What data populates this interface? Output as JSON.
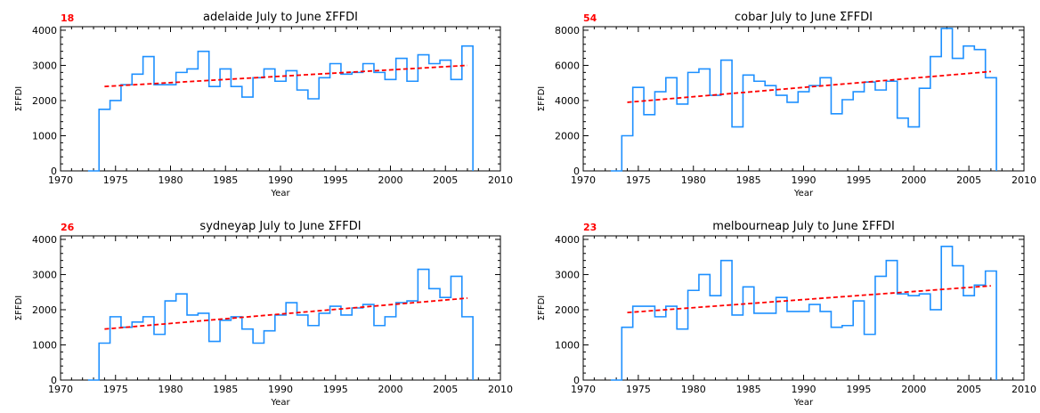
{
  "chart_data": [
    {
      "type": "line",
      "title": "adelaide July to June ΣFFDI",
      "badge": "18",
      "xlabel": "Year",
      "ylabel": "ΣFFDI",
      "xlim": [
        1970,
        2010
      ],
      "ylim": [
        0,
        4100
      ],
      "xticks": [
        1970,
        1975,
        1980,
        1985,
        1990,
        1995,
        2000,
        2005,
        2010
      ],
      "yticks": [
        0,
        1000,
        2000,
        3000,
        4000
      ],
      "series": [
        {
          "years": [
            1973,
            1974,
            1975,
            1976,
            1977,
            1978,
            1979,
            1980,
            1981,
            1982,
            1983,
            1984,
            1985,
            1986,
            1987,
            1988,
            1989,
            1990,
            1991,
            1992,
            1993,
            1994,
            1995,
            1996,
            1997,
            1998,
            1999,
            2000,
            2001,
            2002,
            2003,
            2004,
            2005,
            2006,
            2007
          ],
          "values": [
            0,
            1750,
            2000,
            2450,
            2750,
            3250,
            2450,
            2450,
            2800,
            2900,
            3400,
            2400,
            2900,
            2400,
            2100,
            2650,
            2900,
            2550,
            2850,
            2300,
            2050,
            2650,
            3050,
            2750,
            2800,
            3050,
            2800,
            2600,
            3200,
            2550,
            3300,
            3050,
            3150,
            2600,
            3550
          ],
          "color": "#1e90ff"
        }
      ],
      "trend": {
        "x": [
          1974,
          2007
        ],
        "y": [
          2400,
          3000
        ],
        "color": "#ff0000"
      }
    },
    {
      "type": "line",
      "title": "cobar July to June ΣFFDI",
      "badge": "54",
      "xlabel": "Year",
      "ylabel": "ΣFFDI",
      "xlim": [
        1970,
        2010
      ],
      "ylim": [
        0,
        8200
      ],
      "xticks": [
        1970,
        1975,
        1980,
        1985,
        1990,
        1995,
        2000,
        2005,
        2010
      ],
      "yticks": [
        0,
        2000,
        4000,
        6000,
        8000
      ],
      "series": [
        {
          "years": [
            1973,
            1974,
            1975,
            1976,
            1977,
            1978,
            1979,
            1980,
            1981,
            1982,
            1983,
            1984,
            1985,
            1986,
            1987,
            1988,
            1989,
            1990,
            1991,
            1992,
            1993,
            1994,
            1995,
            1996,
            1997,
            1998,
            1999,
            2000,
            2001,
            2002,
            2003,
            2004,
            2005,
            2006,
            2007
          ],
          "values": [
            0,
            2000,
            4750,
            3200,
            4500,
            5300,
            3800,
            5600,
            5800,
            4300,
            6300,
            2500,
            5450,
            5100,
            4850,
            4300,
            3900,
            4500,
            4850,
            5300,
            3250,
            4050,
            4500,
            5050,
            4600,
            5100,
            3000,
            2500,
            4700,
            6500,
            8100,
            6400,
            7100,
            6900,
            5300
          ],
          "color": "#1e90ff"
        }
      ],
      "trend": {
        "x": [
          1974,
          2007
        ],
        "y": [
          3900,
          5650
        ],
        "color": "#ff0000"
      }
    },
    {
      "type": "line",
      "title": "sydneyap July to June ΣFFDI",
      "badge": "26",
      "xlabel": "Year",
      "ylabel": "ΣFFDI",
      "xlim": [
        1970,
        2010
      ],
      "ylim": [
        0,
        4100
      ],
      "xticks": [
        1970,
        1975,
        1980,
        1985,
        1990,
        1995,
        2000,
        2005,
        2010
      ],
      "yticks": [
        0,
        1000,
        2000,
        3000,
        4000
      ],
      "series": [
        {
          "years": [
            1973,
            1974,
            1975,
            1976,
            1977,
            1978,
            1979,
            1980,
            1981,
            1982,
            1983,
            1984,
            1985,
            1986,
            1987,
            1988,
            1989,
            1990,
            1991,
            1992,
            1993,
            1994,
            1995,
            1996,
            1997,
            1998,
            1999,
            2000,
            2001,
            2002,
            2003,
            2004,
            2005,
            2006,
            2007
          ],
          "values": [
            0,
            1050,
            1800,
            1500,
            1650,
            1800,
            1300,
            2250,
            2450,
            1850,
            1900,
            1100,
            1700,
            1800,
            1450,
            1050,
            1400,
            1850,
            2200,
            1850,
            1550,
            1900,
            2100,
            1850,
            2050,
            2150,
            1550,
            1800,
            2200,
            2250,
            3150,
            2600,
            2350,
            2950,
            1800
          ],
          "color": "#1e90ff"
        }
      ],
      "trend": {
        "x": [
          1974,
          2007
        ],
        "y": [
          1450,
          2330
        ],
        "color": "#ff0000"
      }
    },
    {
      "type": "line",
      "title": "melbourneap July to June ΣFFDI",
      "badge": "23",
      "xlabel": "Year",
      "ylabel": "ΣFFDI",
      "xlim": [
        1970,
        2010
      ],
      "ylim": [
        0,
        4100
      ],
      "xticks": [
        1970,
        1975,
        1980,
        1985,
        1990,
        1995,
        2000,
        2005,
        2010
      ],
      "yticks": [
        0,
        1000,
        2000,
        3000,
        4000
      ],
      "series": [
        {
          "years": [
            1973,
            1974,
            1975,
            1976,
            1977,
            1978,
            1979,
            1980,
            1981,
            1982,
            1983,
            1984,
            1985,
            1986,
            1987,
            1988,
            1989,
            1990,
            1991,
            1992,
            1993,
            1994,
            1995,
            1996,
            1997,
            1998,
            1999,
            2000,
            2001,
            2002,
            2003,
            2004,
            2005,
            2006,
            2007
          ],
          "values": [
            0,
            1500,
            2100,
            2100,
            1800,
            2100,
            1450,
            2550,
            3000,
            2400,
            3400,
            1850,
            2650,
            1900,
            1900,
            2350,
            1950,
            1950,
            2150,
            1950,
            1500,
            1550,
            2250,
            1300,
            2950,
            3400,
            2450,
            2400,
            2450,
            2000,
            3800,
            3250,
            2400,
            2700,
            3100
          ],
          "color": "#1e90ff"
        }
      ],
      "trend": {
        "x": [
          1974,
          2007
        ],
        "y": [
          1920,
          2680
        ],
        "color": "#ff0000"
      }
    }
  ]
}
